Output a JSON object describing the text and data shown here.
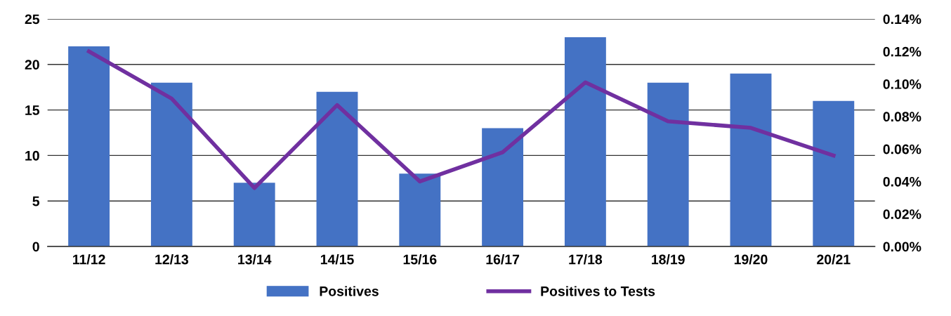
{
  "chart_data": {
    "type": "bar",
    "categories": [
      "11/12",
      "12/13",
      "13/14",
      "14/15",
      "15/16",
      "16/17",
      "17/18",
      "18/19",
      "19/20",
      "20/21"
    ],
    "series": [
      {
        "name": "Positives",
        "color": "#4472c4",
        "values": [
          22,
          18,
          7,
          17,
          8,
          13,
          23,
          18,
          19,
          16
        ]
      },
      {
        "name": "Positives to Tests",
        "type": "line",
        "axis": "y2",
        "color": "#7030a0",
        "values": [
          0.12,
          0.091,
          0.036,
          0.087,
          0.04,
          0.058,
          0.101,
          0.077,
          0.073,
          0.056
        ]
      }
    ],
    "ylim": [
      0,
      25
    ],
    "yticks": [
      0,
      5,
      10,
      15,
      20,
      25
    ],
    "y2lim": [
      0,
      0.14
    ],
    "y2ticks": [
      {
        "value": 0,
        "label": "0.00%"
      },
      {
        "value": 0.02,
        "label": "0.02%"
      },
      {
        "value": 0.04,
        "label": "0.04%"
      },
      {
        "value": 0.06,
        "label": "0.06%"
      },
      {
        "value": 0.08,
        "label": "0.08%"
      },
      {
        "value": 0.1,
        "label": "0.10%"
      },
      {
        "value": 0.12,
        "label": "0.12%"
      },
      {
        "value": 0.14,
        "label": "0.14%"
      }
    ],
    "grid": "y",
    "legend": "bottom",
    "marker": "none",
    "line_style": "solid"
  }
}
